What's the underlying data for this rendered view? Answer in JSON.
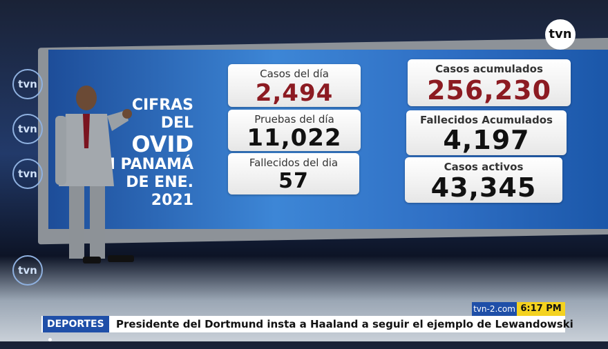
{
  "channel_logo": "tvn",
  "wall_logos": [
    "tvn",
    "tvn",
    "tvn",
    "tvn"
  ],
  "screen": {
    "title_lines": [
      "CIFRAS DEL",
      "OVID",
      "N PANAMÁ",
      "DE ENE. 2021"
    ],
    "left_boxes": [
      {
        "label": "Casos del día",
        "value": "2,494"
      },
      {
        "label": "Pruebas del día",
        "value": "11,022"
      },
      {
        "label": "Fallecidos del dia",
        "value": "57"
      }
    ],
    "right_boxes": [
      {
        "label": "Casos acumulados",
        "value": "256,230"
      },
      {
        "label": "Fallecidos Acumulados",
        "value": "4,197"
      },
      {
        "label": "Casos activos",
        "value": "43,345"
      }
    ]
  },
  "ticker": {
    "site": "tvn-2.com",
    "time": "6:17 PM",
    "section": "DEPORTES",
    "headline": "Presidente del Dortmund insta a Haaland a seguir el ejemplo de Lewandowski"
  }
}
